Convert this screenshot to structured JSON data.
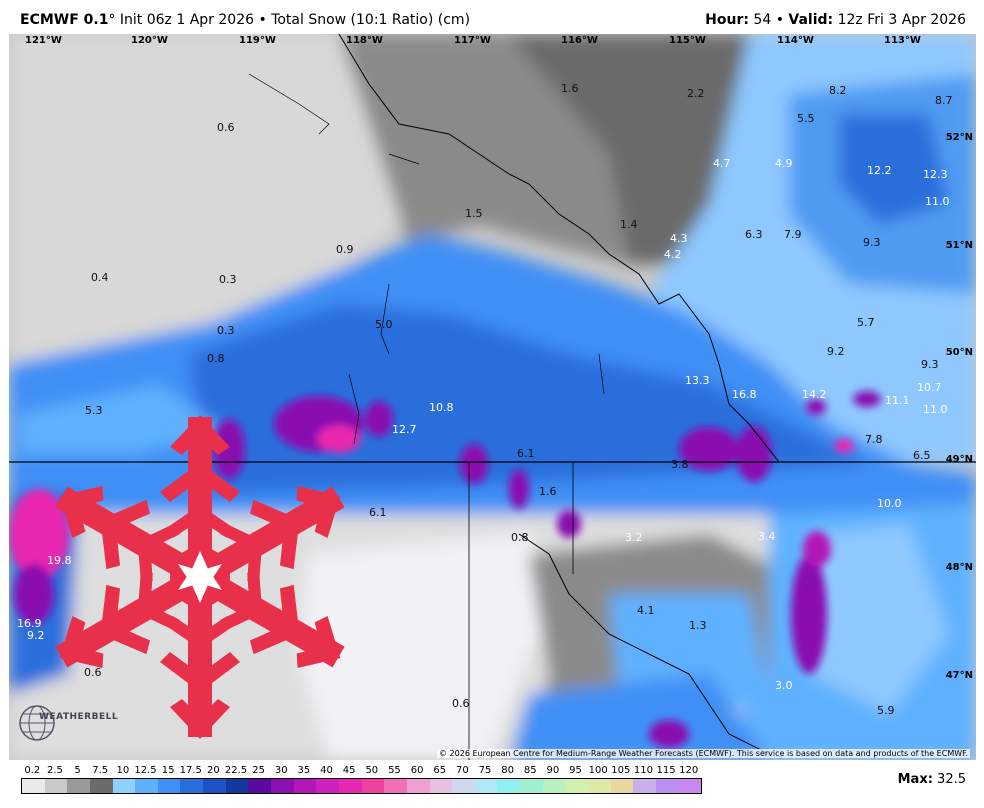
{
  "header": {
    "model": "ECMWF 0.1",
    "init": "° Init 06z 1 Apr 2026",
    "separator": "•",
    "product": "Total Snow (10:1 Ratio) (cm)",
    "hour_label": "Hour:",
    "hour": "54",
    "valid_label": "Valid:",
    "valid": "12z Fri 3 Apr 2026"
  },
  "longitudes": [
    "121°W",
    "120°W",
    "119°W",
    "118°W",
    "117°W",
    "116°W",
    "115°W",
    "114°W",
    "113°W"
  ],
  "latitudes": [
    "52°N",
    "51°N",
    "50°N",
    "49°N",
    "48°N",
    "47°N"
  ],
  "values": [
    "1.6",
    "2.2",
    "8.2",
    "8.7",
    "0.6",
    "5.5",
    "12.2",
    "12.3",
    "4.7",
    "4.9",
    "11.0",
    "1.5",
    "1.4",
    "4.3",
    "6.3",
    "7.9",
    "9.3",
    "0.9",
    "4.2",
    "0.4",
    "0.3",
    "0.3",
    "5.0",
    "5.7",
    "9.2",
    "0.8",
    "13.3",
    "9.3",
    "16.8",
    "14.2",
    "10.7",
    "11.1",
    "5.3",
    "10.8",
    "12.7",
    "11.0",
    "7.8",
    "6.1",
    "6.5",
    "3.8",
    "1.6",
    "10.0",
    "6.1",
    "3.2",
    "3.4",
    "0.8",
    "19.8",
    "4.1",
    "1.3",
    "9.2",
    "16.9",
    "0.6",
    "3.0",
    "0.6",
    "5.9"
  ],
  "copyright": "© 2026 European Centre for Medium-Range Weather Forecasts (ECMWF). This service is based on data and products of the ECMWF.",
  "logo": "WEATHERBELL",
  "colorbar": {
    "labels": [
      "0.2",
      "2.5",
      "5",
      "7.5",
      "10",
      "12.5",
      "15",
      "17.5",
      "20",
      "22.5",
      "25",
      "30",
      "35",
      "40",
      "45",
      "50",
      "55",
      "60",
      "65",
      "70",
      "75",
      "80",
      "85",
      "90",
      "95",
      "100",
      "105",
      "110",
      "115",
      "120"
    ],
    "colors": [
      "#e9e9e9",
      "#c9c9c9",
      "#9a9a9a",
      "#6c6c6c",
      "#8fd0ff",
      "#5fb1ff",
      "#3f8ff5",
      "#2a6edb",
      "#1f52c4",
      "#14389e",
      "#5a0aa0",
      "#8a10b0",
      "#b018b8",
      "#d020c0",
      "#e828b0",
      "#f040a0",
      "#f070b8",
      "#f0a0d0",
      "#e8c0e0",
      "#d0d8f0",
      "#b0e8f8",
      "#90f0f0",
      "#a0f0d0",
      "#b8f0c0",
      "#d0f0b0",
      "#e0e8a8",
      "#e8d8a0",
      "#c8b0e8",
      "#b890f0",
      "#c888f0"
    ]
  },
  "max_label": "Max:",
  "max_value": "32.5"
}
